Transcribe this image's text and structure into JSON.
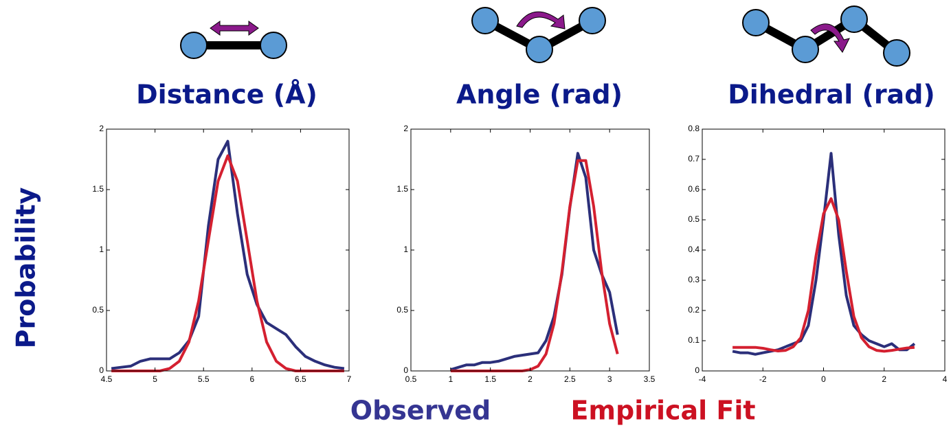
{
  "ylabel": "Probability",
  "chart_data": [
    {
      "type": "line",
      "title": "Distance (Å)",
      "x": [
        4.55,
        4.65,
        4.75,
        4.85,
        4.95,
        5.05,
        5.15,
        5.25,
        5.35,
        5.45,
        5.55,
        5.65,
        5.75,
        5.85,
        5.95,
        6.05,
        6.15,
        6.25,
        6.35,
        6.45,
        6.55,
        6.65,
        6.75,
        6.85,
        6.95
      ],
      "xlim": [
        4.5,
        7
      ],
      "xticks": [
        4.5,
        5,
        5.5,
        6,
        6.5,
        7
      ],
      "ylim": [
        0,
        2
      ],
      "yticks": [
        0,
        0.5,
        1,
        1.5,
        2
      ],
      "series": [
        {
          "name": "Observed",
          "color": "#2b2f7a",
          "values": [
            0.02,
            0.03,
            0.04,
            0.08,
            0.1,
            0.1,
            0.1,
            0.15,
            0.25,
            0.45,
            1.2,
            1.75,
            1.9,
            1.3,
            0.8,
            0.55,
            0.4,
            0.35,
            0.3,
            0.2,
            0.12,
            0.08,
            0.05,
            0.03,
            0.02
          ]
        },
        {
          "name": "Empirical Fit",
          "color": "#d42030",
          "values": [
            0,
            0,
            0,
            0,
            0,
            0,
            0.02,
            0.08,
            0.24,
            0.58,
            1.08,
            1.57,
            1.78,
            1.57,
            1.08,
            0.58,
            0.24,
            0.08,
            0.02,
            0,
            0,
            0,
            0,
            0,
            0
          ]
        }
      ]
    },
    {
      "type": "line",
      "title": "Angle (rad)",
      "x": [
        1.0,
        1.1,
        1.2,
        1.3,
        1.4,
        1.5,
        1.6,
        1.7,
        1.8,
        1.9,
        2.0,
        2.1,
        2.2,
        2.3,
        2.4,
        2.5,
        2.6,
        2.7,
        2.8,
        2.9,
        3.0,
        3.1
      ],
      "xlim": [
        0.5,
        3.5
      ],
      "xticks": [
        0.5,
        1,
        1.5,
        2,
        2.5,
        3,
        3.5
      ],
      "ylim": [
        0,
        2
      ],
      "yticks": [
        0,
        0.5,
        1,
        1.5,
        2
      ],
      "series": [
        {
          "name": "Observed",
          "color": "#2b2f7a",
          "values": [
            0.01,
            0.03,
            0.05,
            0.05,
            0.07,
            0.07,
            0.08,
            0.1,
            0.12,
            0.13,
            0.14,
            0.15,
            0.25,
            0.45,
            0.8,
            1.35,
            1.8,
            1.6,
            1.0,
            0.8,
            0.65,
            0.3
          ]
        },
        {
          "name": "Empirical Fit",
          "color": "#d42030",
          "values": [
            0,
            0,
            0,
            0,
            0,
            0,
            0,
            0,
            0,
            0,
            0.01,
            0.04,
            0.14,
            0.39,
            0.82,
            1.36,
            1.74,
            1.74,
            1.36,
            0.82,
            0.39,
            0.14
          ]
        }
      ]
    },
    {
      "type": "line",
      "title": "Dihedral (rad)",
      "x": [
        -3,
        -2.75,
        -2.5,
        -2.25,
        -2,
        -1.75,
        -1.5,
        -1.25,
        -1,
        -0.75,
        -0.5,
        -0.25,
        0,
        0.25,
        0.5,
        0.75,
        1,
        1.25,
        1.5,
        1.75,
        2,
        2.25,
        2.5,
        2.75,
        3
      ],
      "xlim": [
        -4,
        4
      ],
      "xticks": [
        -4,
        -2,
        0,
        2,
        4
      ],
      "ylim": [
        0,
        0.8
      ],
      "yticks": [
        0,
        0.1,
        0.2,
        0.3,
        0.4,
        0.5,
        0.6,
        0.7,
        0.8
      ],
      "series": [
        {
          "name": "Observed",
          "color": "#2b2f7a",
          "values": [
            0.065,
            0.06,
            0.06,
            0.055,
            0.06,
            0.065,
            0.07,
            0.08,
            0.09,
            0.1,
            0.15,
            0.3,
            0.5,
            0.72,
            0.45,
            0.25,
            0.15,
            0.12,
            0.1,
            0.09,
            0.08,
            0.09,
            0.07,
            0.07,
            0.09
          ]
        },
        {
          "name": "Empirical Fit",
          "color": "#d42030",
          "values": [
            0.078,
            0.078,
            0.078,
            0.078,
            0.075,
            0.07,
            0.066,
            0.068,
            0.08,
            0.11,
            0.2,
            0.38,
            0.52,
            0.57,
            0.5,
            0.33,
            0.18,
            0.11,
            0.08,
            0.068,
            0.065,
            0.068,
            0.072,
            0.076,
            0.078
          ]
        }
      ]
    }
  ]
}
